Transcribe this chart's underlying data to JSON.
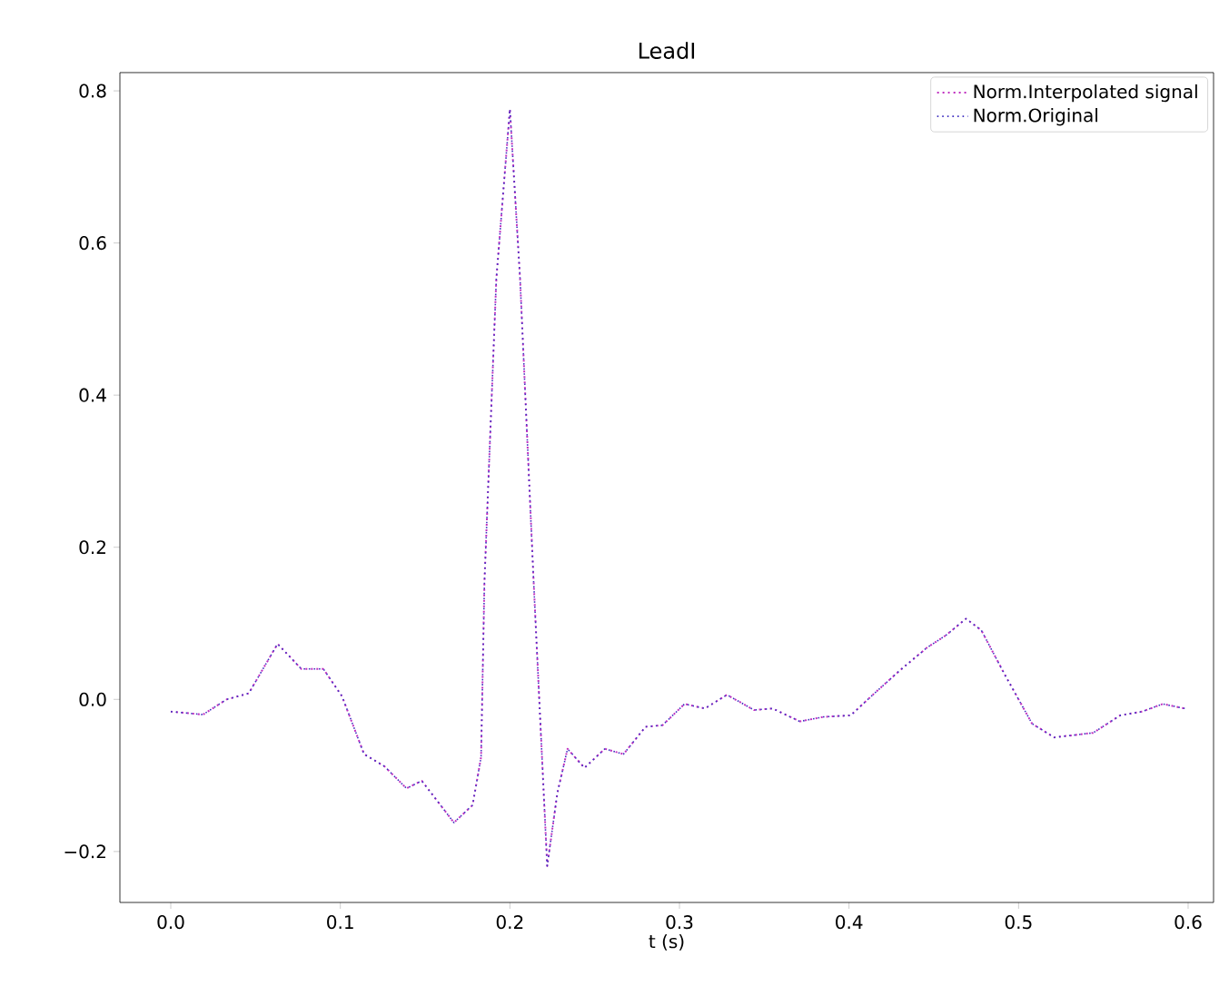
{
  "chart_data": {
    "type": "line",
    "title": "LeadI",
    "xlabel": "t (s)",
    "x": [
      0,
      0.019,
      0.033,
      0.046,
      0.063,
      0.077,
      0.09,
      0.101,
      0.114,
      0.126,
      0.139,
      0.148,
      0.167,
      0.178,
      0.183,
      0.185,
      0.192,
      0.2,
      0.206,
      0.214,
      0.222,
      0.228,
      0.234,
      0.244,
      0.256,
      0.267,
      0.28,
      0.29,
      0.303,
      0.315,
      0.328,
      0.344,
      0.355,
      0.371,
      0.385,
      0.401,
      0.415,
      0.431,
      0.446,
      0.457,
      0.469,
      0.478,
      0.492,
      0.508,
      0.521,
      0.544,
      0.56,
      0.573,
      0.585,
      0.598
    ],
    "series": [
      {
        "name": "Norm.Interpolated signal",
        "color": "#c030c0",
        "line_style": "dotted",
        "values": [
          -0.016,
          -0.02,
          0.0,
          0.008,
          0.073,
          0.04,
          0.04,
          0.004,
          -0.072,
          -0.088,
          -0.117,
          -0.107,
          -0.162,
          -0.139,
          -0.076,
          0.155,
          0.553,
          0.776,
          0.553,
          0.155,
          -0.219,
          -0.123,
          -0.065,
          -0.09,
          -0.065,
          -0.072,
          -0.036,
          -0.034,
          -0.006,
          -0.012,
          0.006,
          -0.014,
          -0.012,
          -0.029,
          -0.023,
          -0.021,
          0.008,
          0.04,
          0.068,
          0.084,
          0.106,
          0.091,
          0.032,
          -0.032,
          -0.05,
          -0.044,
          -0.021,
          -0.016,
          -0.006,
          -0.012
        ]
      },
      {
        "name": "Norm.Original",
        "color": "#4030c0",
        "line_style": "dotted",
        "values": [
          -0.016,
          -0.02,
          0.0,
          0.008,
          0.073,
          0.04,
          0.04,
          0.004,
          -0.072,
          -0.088,
          -0.117,
          -0.107,
          -0.162,
          -0.139,
          -0.076,
          0.155,
          0.553,
          0.776,
          0.553,
          0.155,
          -0.219,
          -0.123,
          -0.065,
          -0.09,
          -0.065,
          -0.072,
          -0.036,
          -0.034,
          -0.006,
          -0.012,
          0.006,
          -0.014,
          -0.012,
          -0.029,
          -0.023,
          -0.021,
          0.008,
          0.04,
          0.068,
          0.084,
          0.106,
          0.091,
          0.032,
          -0.032,
          -0.05,
          -0.044,
          -0.021,
          -0.016,
          -0.006,
          -0.012
        ]
      }
    ],
    "xlim": [
      -0.03,
      0.615
    ],
    "ylim": [
      -0.267,
      0.824
    ],
    "xticks": [
      {
        "value": 0,
        "label": "0.0"
      },
      {
        "value": 0.1,
        "label": "0.1"
      },
      {
        "value": 0.2,
        "label": "0.2"
      },
      {
        "value": 0.3,
        "label": "0.3"
      },
      {
        "value": 0.4,
        "label": "0.4"
      },
      {
        "value": 0.5,
        "label": "0.5"
      },
      {
        "value": 0.6,
        "label": "0.6"
      }
    ],
    "yticks": [
      {
        "value": -0.2,
        "label": "−0.2"
      },
      {
        "value": 0,
        "label": "0.0"
      },
      {
        "value": 0.2,
        "label": "0.2"
      },
      {
        "value": 0.4,
        "label": "0.4"
      },
      {
        "value": 0.6,
        "label": "0.6"
      },
      {
        "value": 0.8,
        "label": "0.8"
      }
    ],
    "grid": false,
    "legend": "top right",
    "marker": "none"
  }
}
